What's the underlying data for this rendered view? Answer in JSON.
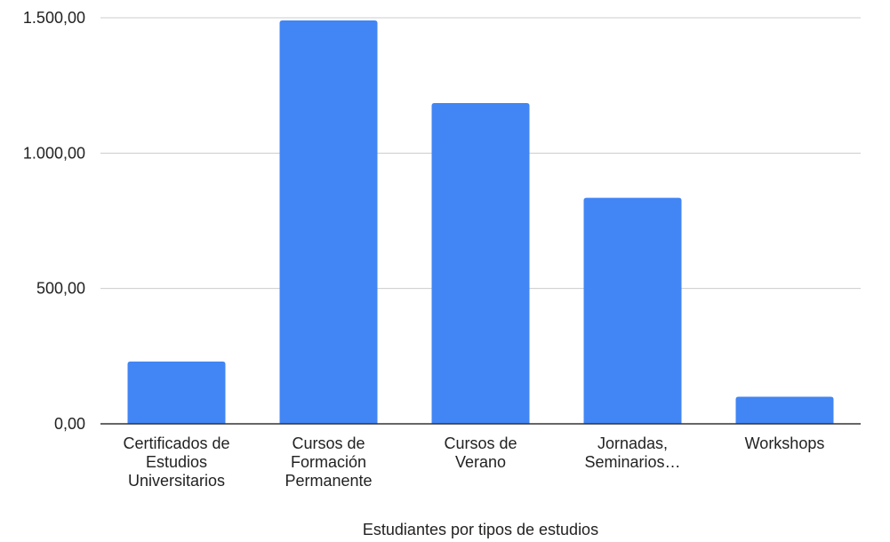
{
  "chart_data": {
    "type": "bar",
    "title": "",
    "xlabel": "Estudiantes por tipos de estudios",
    "ylabel": "",
    "categories": [
      [
        "Certificados de",
        "Estudios",
        "Universitarios"
      ],
      [
        "Cursos de",
        "Formación",
        "Permanente"
      ],
      [
        "Cursos de",
        "Verano"
      ],
      [
        "Jornadas,",
        "Seminarios…"
      ],
      [
        "Workshops"
      ]
    ],
    "values": [
      230,
      1490,
      1185,
      835,
      100
    ],
    "ylim": [
      0,
      1500
    ],
    "yticks": [
      {
        "value": 0,
        "label": "0,00"
      },
      {
        "value": 500,
        "label": "500,00"
      },
      {
        "value": 1000,
        "label": "1.000,00"
      },
      {
        "value": 1500,
        "label": "1.500,00"
      }
    ],
    "grid": true,
    "legend": "none",
    "colors": {
      "bar": "#4285f4",
      "grid": "#cccccc",
      "axis": "#333333"
    }
  }
}
